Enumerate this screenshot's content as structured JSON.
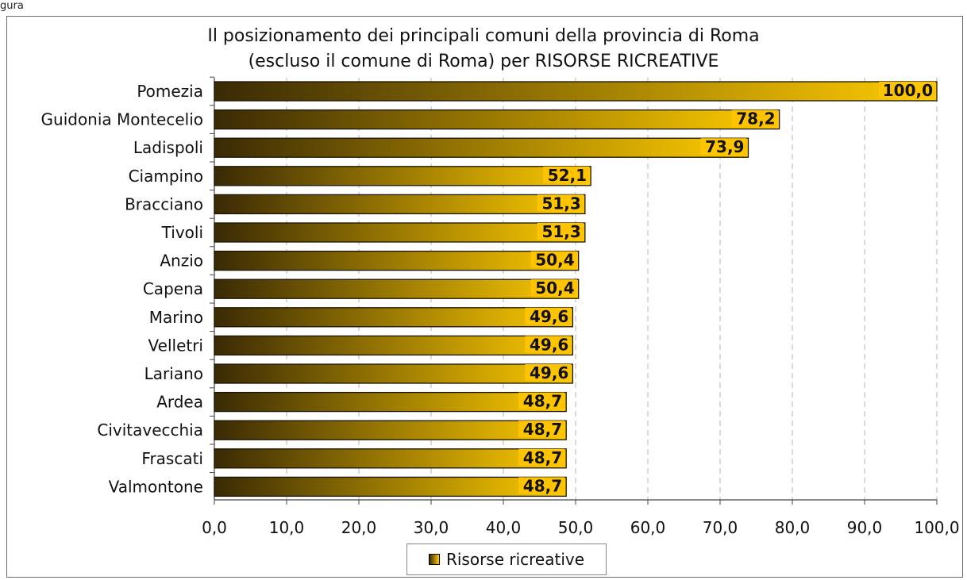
{
  "corner_label": "gura",
  "chart_data": {
    "type": "bar",
    "orientation": "horizontal",
    "title_lines": [
      "Il posizionamento dei principali comuni della provincia di Roma",
      "(escluso il comune di Roma) per RISORSE RICREATIVE"
    ],
    "categories": [
      "Pomezia",
      "Guidonia Montecelio",
      "Ladispoli",
      "Ciampino",
      "Bracciano",
      "Tivoli",
      "Anzio",
      "Capena",
      "Marino",
      "Velletri",
      "Lariano",
      "Ardea",
      "Civitavecchia",
      "Frascati",
      "Valmontone"
    ],
    "series": [
      {
        "name": "Risorse ricreative",
        "values": [
          100.0,
          78.2,
          73.9,
          52.1,
          51.3,
          51.3,
          50.4,
          50.4,
          49.6,
          49.6,
          49.6,
          48.7,
          48.7,
          48.7,
          48.7
        ]
      }
    ],
    "data_labels": [
      "100,0",
      "78,2",
      "73,9",
      "52,1",
      "51,3",
      "51,3",
      "50,4",
      "50,4",
      "49,6",
      "49,6",
      "49,6",
      "48,7",
      "48,7",
      "48,7",
      "48,7"
    ],
    "x_ticks": [
      "0,0",
      "10,0",
      "20,0",
      "30,0",
      "40,0",
      "50,0",
      "60,0",
      "70,0",
      "80,0",
      "90,0",
      "100,0"
    ],
    "xlim": [
      0,
      100
    ],
    "grid": "vertical dashed",
    "legend_position": "bottom",
    "colors": {
      "bar_start": "#3a2a05",
      "bar_end": "#ffcc00",
      "label_bg": "#ffc400",
      "grid": "#b5b5b5"
    }
  }
}
